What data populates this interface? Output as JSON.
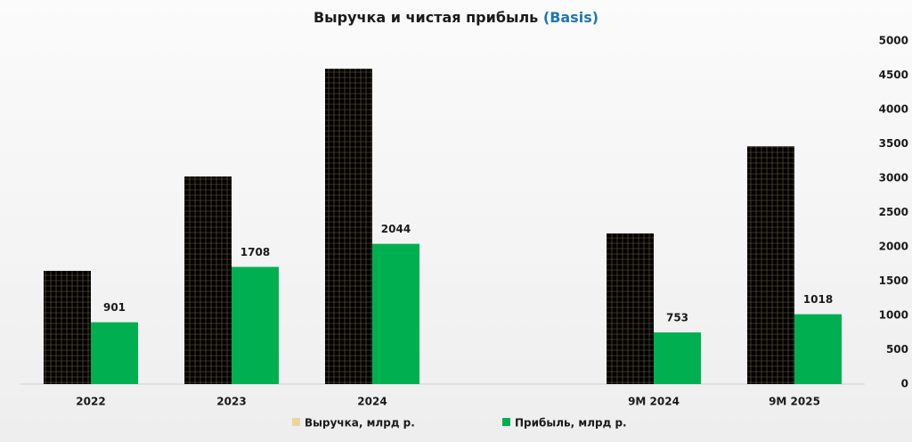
{
  "chart_data": {
    "type": "bar",
    "title": "Выручка и чистая прибыль",
    "title_suffix": "(Basis)",
    "categories": [
      "2022",
      "2023",
      "2024",
      null,
      "9M 2024",
      "9M 2025"
    ],
    "series": [
      {
        "name": "Выручка, млрд р.",
        "color": "#e9d4a2",
        "values": [
          1650,
          3025,
          4595,
          null,
          2195,
          3465
        ]
      },
      {
        "name": "Прибыль, млрд р.",
        "color": "#00b050",
        "values": [
          901,
          1708,
          2044,
          null,
          753,
          1018
        ],
        "data_labels": true
      }
    ],
    "ylim": [
      0,
      5000
    ],
    "yticks": [
      0,
      500,
      1000,
      1500,
      2000,
      2500,
      3000,
      3500,
      4000,
      4500,
      5000
    ],
    "y_axis_side": "right",
    "legend": "bottom",
    "grid": false
  }
}
